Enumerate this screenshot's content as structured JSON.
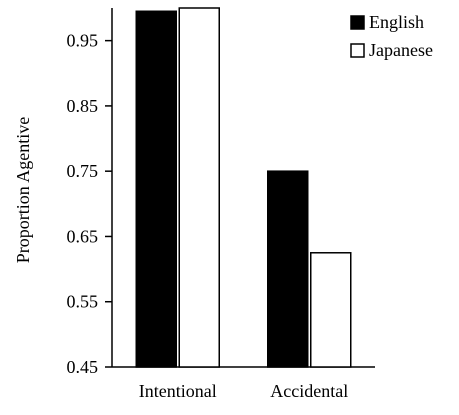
{
  "chart_data": {
    "type": "bar",
    "title": "",
    "xlabel": "",
    "ylabel": "Proportion Agentive",
    "categories": [
      "Intentional",
      "Accidental"
    ],
    "series": [
      {
        "name": "English",
        "values": [
          0.995,
          0.75
        ],
        "color": "#000000",
        "fill": "filled"
      },
      {
        "name": "Japanese",
        "values": [
          1.0,
          0.625
        ],
        "color": "#ffffff",
        "fill": "outline"
      }
    ],
    "ylim": [
      0.45,
      1.0
    ],
    "yticks": [
      0.45,
      0.55,
      0.65,
      0.75,
      0.85,
      0.95
    ],
    "ytick_labels": [
      "0.45",
      "0.55",
      "0.65",
      "0.75",
      "0.85",
      "0.95"
    ],
    "grid": false,
    "legend_position": "top-right"
  }
}
